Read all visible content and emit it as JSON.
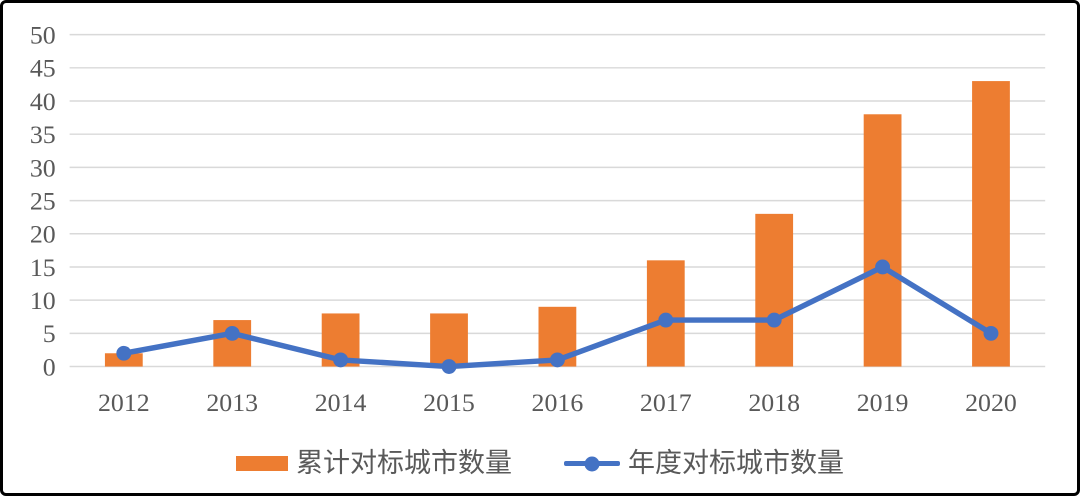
{
  "chart_data": {
    "type": "bar",
    "title": "",
    "xlabel": "",
    "ylabel": "",
    "categories": [
      "2012",
      "2013",
      "2014",
      "2015",
      "2016",
      "2017",
      "2018",
      "2019",
      "2020"
    ],
    "series": [
      {
        "name": "累计对标城市数量",
        "type": "bar",
        "color": "#ED7D31",
        "values": [
          2,
          7,
          8,
          8,
          9,
          16,
          23,
          38,
          43
        ]
      },
      {
        "name": "年度对标城市数量",
        "type": "line",
        "color": "#4472C4",
        "values": [
          2,
          5,
          1,
          0,
          1,
          7,
          7,
          15,
          5
        ]
      }
    ],
    "ylim": [
      0,
      50
    ],
    "ytick_step": 5,
    "grid": true,
    "legend_position": "bottom",
    "colors": {
      "grid": "#D9D9D9",
      "tick_text": "#595959",
      "frame_border": "#000000",
      "background": "#FFFFFF"
    }
  }
}
